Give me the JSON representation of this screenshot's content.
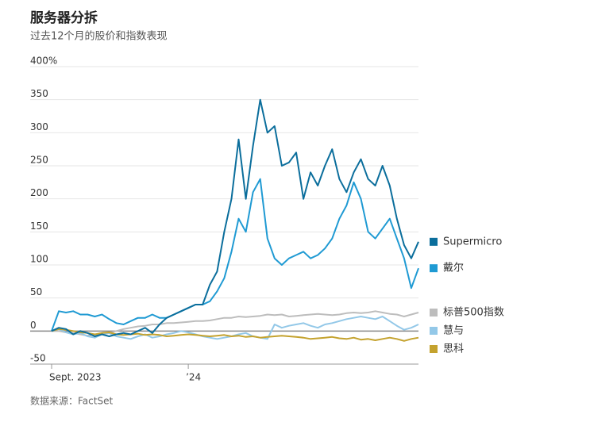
{
  "chart_data": {
    "type": "line",
    "title": "服务器分拆",
    "subtitle": "过去12个月的股价和指数表现",
    "source": "数据来源：FactSet",
    "ylim": [
      -50,
      400
    ],
    "yticks": [
      -50,
      0,
      50,
      100,
      150,
      200,
      250,
      300,
      350,
      {
        "value": 400,
        "label": "400%"
      }
    ],
    "xticks": [
      {
        "value": 0,
        "label": "Sept. 2023"
      },
      {
        "value": 19,
        "label": "’24"
      }
    ],
    "grid": true,
    "series": [
      {
        "name": "Supermicro",
        "color": "#0b6e9c",
        "values": [
          0,
          5,
          3,
          -5,
          0,
          -3,
          -8,
          -5,
          -8,
          -5,
          -3,
          -5,
          0,
          5,
          -3,
          10,
          20,
          25,
          30,
          35,
          40,
          40,
          70,
          90,
          150,
          200,
          290,
          200,
          280,
          350,
          300,
          310,
          250,
          255,
          270,
          200,
          240,
          220,
          250,
          275,
          230,
          210,
          240,
          260,
          230,
          220,
          250,
          220,
          170,
          130,
          110,
          135
        ]
      },
      {
        "name": "戴尔",
        "color": "#1f9ad3",
        "values": [
          0,
          30,
          28,
          30,
          25,
          25,
          22,
          25,
          18,
          12,
          10,
          15,
          20,
          20,
          25,
          20,
          20,
          25,
          30,
          35,
          40,
          40,
          45,
          60,
          80,
          120,
          170,
          150,
          210,
          230,
          140,
          110,
          100,
          110,
          115,
          120,
          110,
          115,
          125,
          140,
          170,
          190,
          225,
          200,
          150,
          140,
          155,
          170,
          140,
          110,
          65,
          95
        ]
      },
      {
        "name": "标普500指数",
        "color": "#bdbdbd",
        "values": [
          0,
          0,
          -2,
          -3,
          -5,
          -7,
          -5,
          -5,
          -3,
          0,
          3,
          5,
          7,
          8,
          10,
          10,
          12,
          12,
          13,
          14,
          15,
          15,
          16,
          18,
          20,
          20,
          22,
          21,
          22,
          23,
          25,
          24,
          25,
          22,
          23,
          24,
          25,
          26,
          25,
          24,
          25,
          27,
          28,
          27,
          28,
          30,
          28,
          26,
          25,
          22,
          25,
          28
        ]
      },
      {
        "name": "慧与",
        "color": "#93c8e8",
        "values": [
          0,
          3,
          -2,
          -5,
          -3,
          -8,
          -10,
          -5,
          -3,
          -8,
          -10,
          -12,
          -8,
          -5,
          -10,
          -8,
          -5,
          -3,
          0,
          -2,
          -5,
          -8,
          -10,
          -12,
          -10,
          -8,
          -5,
          -3,
          -8,
          -10,
          -12,
          10,
          5,
          8,
          10,
          12,
          8,
          5,
          10,
          12,
          15,
          18,
          20,
          22,
          20,
          18,
          22,
          15,
          8,
          2,
          5,
          10
        ]
      },
      {
        "name": "思科",
        "color": "#c4a22e",
        "values": [
          0,
          3,
          2,
          0,
          -2,
          -3,
          -5,
          -3,
          -2,
          -5,
          -6,
          -5,
          -4,
          -6,
          -5,
          -6,
          -8,
          -7,
          -6,
          -5,
          -6,
          -7,
          -8,
          -7,
          -6,
          -8,
          -7,
          -9,
          -8,
          -10,
          -9,
          -8,
          -7,
          -8,
          -9,
          -10,
          -12,
          -11,
          -10,
          -9,
          -11,
          -12,
          -10,
          -13,
          -12,
          -14,
          -12,
          -10,
          -12,
          -15,
          -12,
          -10
        ]
      }
    ]
  }
}
